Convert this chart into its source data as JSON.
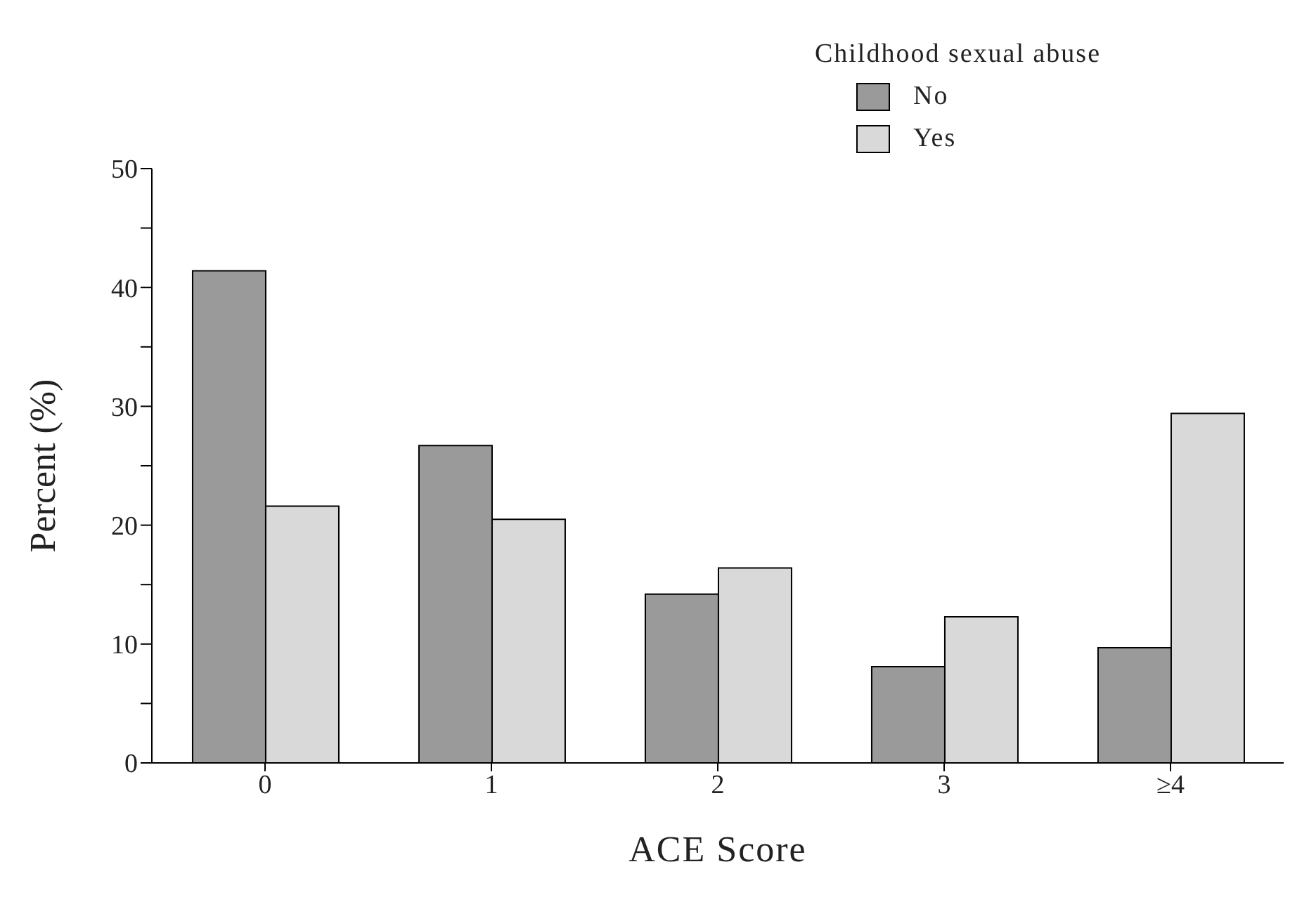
{
  "chart_data": {
    "type": "bar",
    "xlabel": "ACE Score",
    "ylabel": "Percent (%)",
    "legend_title": "Childhood sexual abuse",
    "categories": [
      "0",
      "1",
      "2",
      "3",
      "≥4"
    ],
    "series": [
      {
        "name": "No",
        "color": "#9a9a9a",
        "values": [
          41.4,
          26.7,
          14.2,
          8.1,
          9.7
        ]
      },
      {
        "name": "Yes",
        "color": "#d9d9d9",
        "values": [
          21.6,
          20.5,
          16.4,
          12.3,
          29.4
        ]
      }
    ],
    "ylim": [
      0,
      50
    ],
    "yticks": [
      0,
      {
        "value": 5,
        "label": null
      },
      10,
      {
        "value": 15,
        "label": null
      },
      20,
      {
        "value": 25,
        "label": null
      },
      30,
      {
        "value": 35,
        "label": null
      },
      40,
      {
        "value": 45,
        "label": null
      },
      50
    ],
    "grid": false,
    "legend": "top right"
  }
}
